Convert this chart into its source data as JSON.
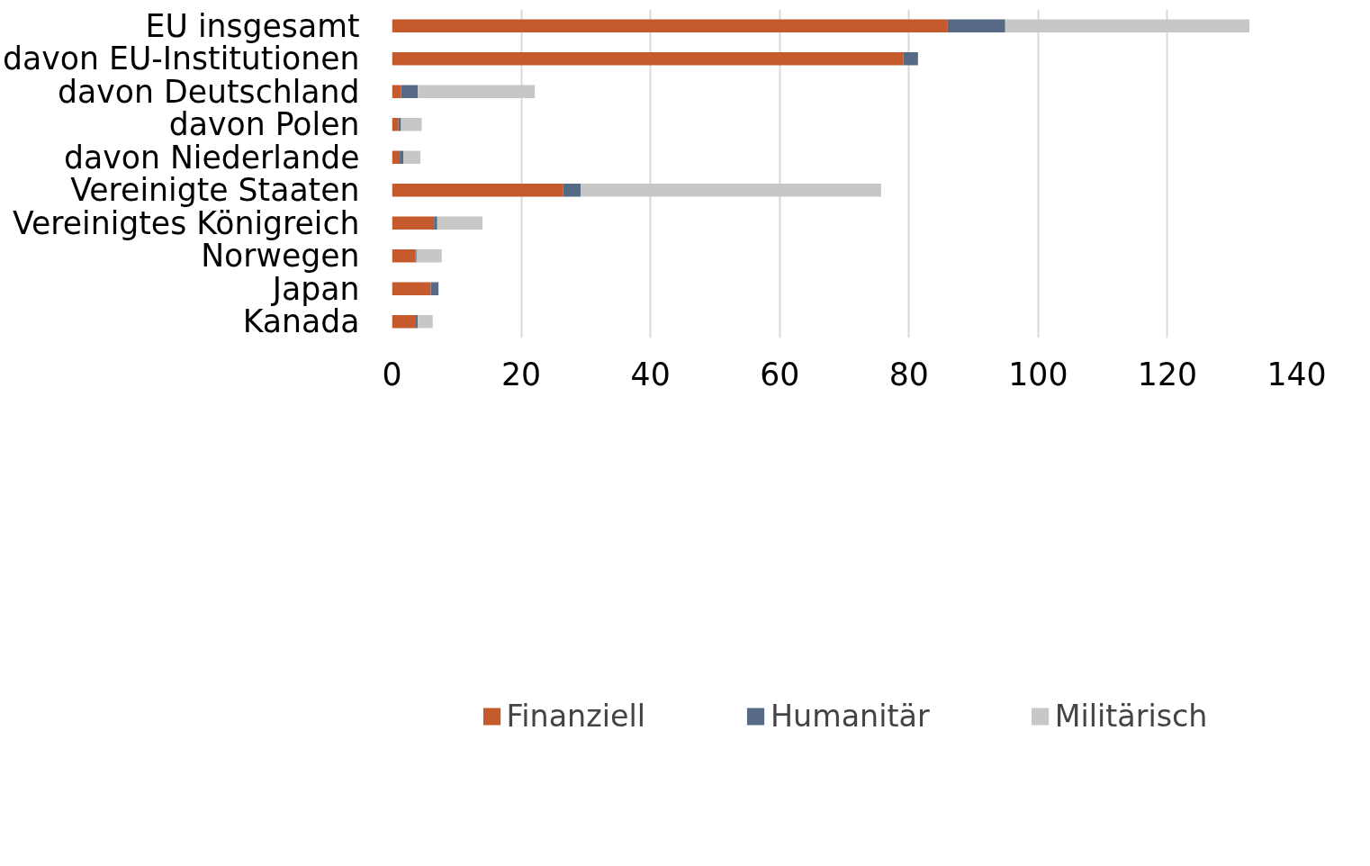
{
  "chart_data": {
    "type": "bar",
    "orientation": "horizontal",
    "stacked": true,
    "categories": [
      "EU insgesamt",
      "davon EU-Institutionen",
      "davon Deutschland",
      "davon Polen",
      "davon Niederlande",
      "Vereinigte Staaten",
      "Vereinigtes Königreich",
      "Norwegen",
      "Japan",
      "Kanada"
    ],
    "series": [
      {
        "name": "Finanziell",
        "color": "#c55a2d",
        "values": [
          86.0,
          79.1,
          1.4,
          1.0,
          1.2,
          26.5,
          6.5,
          3.6,
          6.0,
          3.7
        ]
      },
      {
        "name": "Humanitär",
        "color": "#566a86",
        "values": [
          8.9,
          2.3,
          2.6,
          0.4,
          0.6,
          2.7,
          0.5,
          0.2,
          1.2,
          0.3
        ]
      },
      {
        "name": "Militärisch",
        "color": "#c8c7c5",
        "values": [
          37.8,
          null,
          18.1,
          3.2,
          2.6,
          46.5,
          7.0,
          3.9,
          null,
          2.3
        ]
      }
    ],
    "xlim": [
      0,
      140
    ],
    "xticks": [
      0,
      20,
      40,
      60,
      80,
      100,
      120,
      140
    ],
    "grid": "x",
    "legend": "bottom"
  }
}
